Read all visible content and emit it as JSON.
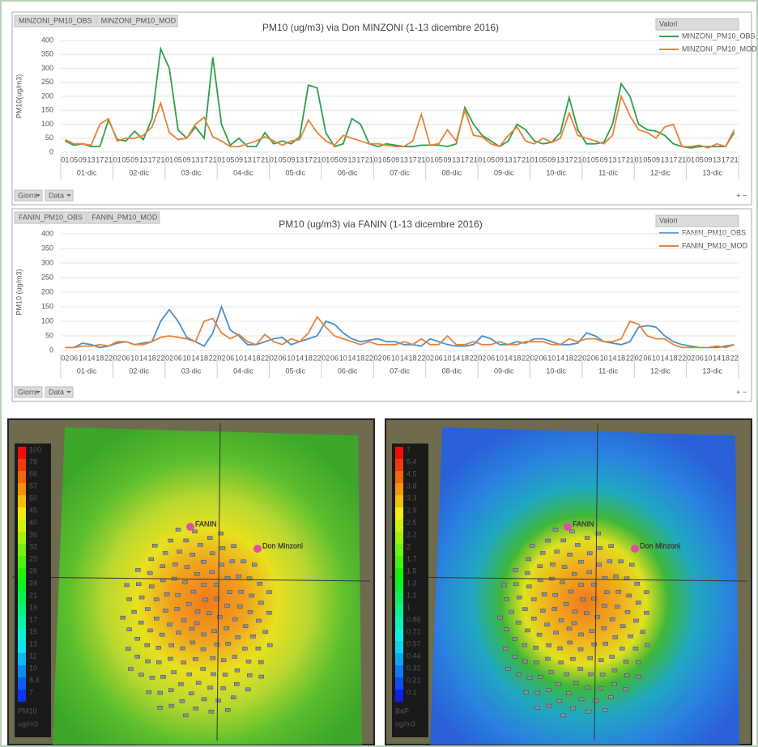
{
  "chart_data": [
    {
      "type": "line",
      "title": "PM10 (ug/m3) via Don MINZONI (1-13 dicembre 2016)",
      "y_label": "PM10(ug/m3)",
      "legend_title": "Valori",
      "filter_buttons": [
        "Giorni",
        "Data"
      ],
      "categories": [
        "01",
        "05",
        "09",
        "13",
        "17",
        "21",
        "01",
        "05",
        "09",
        "13",
        "17",
        "21",
        "01",
        "05",
        "09",
        "13",
        "17",
        "21",
        "01",
        "05",
        "09",
        "13",
        "17",
        "21",
        "01",
        "05",
        "09",
        "13",
        "17",
        "21",
        "01",
        "05",
        "09",
        "13",
        "17",
        "21",
        "01",
        "05",
        "09",
        "13",
        "17",
        "21",
        "01",
        "05",
        "09",
        "13",
        "17",
        "21",
        "01",
        "05",
        "09",
        "13",
        "17",
        "21",
        "01",
        "05",
        "09",
        "13",
        "17",
        "21",
        "01",
        "05",
        "09",
        "13",
        "17",
        "21",
        "01",
        "05",
        "09",
        "13",
        "17",
        "21",
        "01",
        "05",
        "09",
        "13",
        "17",
        "21"
      ],
      "day_groups": [
        "01-dic",
        "02-dic",
        "03-dic",
        "04-dic",
        "05-dic",
        "06-dic",
        "07-dic",
        "08-dic",
        "09-dic",
        "10-dic",
        "11-dic",
        "12-dic",
        "13-dic"
      ],
      "series": [
        {
          "name": "MINZONI_PM10_OBS",
          "color": "#2e9e4a",
          "values": [
            40,
            25,
            30,
            20,
            20,
            115,
            45,
            40,
            75,
            45,
            120,
            370,
            300,
            80,
            50,
            90,
            50,
            340,
            100,
            25,
            50,
            20,
            20,
            70,
            30,
            40,
            30,
            55,
            240,
            230,
            70,
            20,
            30,
            120,
            100,
            30,
            20,
            30,
            25,
            20,
            20,
            25,
            25,
            25,
            20,
            30,
            160,
            100,
            60,
            40,
            20,
            40,
            100,
            80,
            40,
            30,
            35,
            70,
            195,
            80,
            30,
            30,
            35,
            100,
            245,
            200,
            100,
            80,
            75,
            60,
            30,
            20,
            15,
            20,
            20,
            20,
            20,
            70
          ]
        },
        {
          "name": "MINZONI_PM10_MOD",
          "color": "#e8823a",
          "values": [
            45,
            30,
            30,
            25,
            100,
            120,
            40,
            50,
            50,
            60,
            90,
            175,
            70,
            45,
            50,
            100,
            125,
            55,
            40,
            20,
            20,
            30,
            40,
            55,
            40,
            25,
            40,
            45,
            115,
            70,
            40,
            25,
            60,
            50,
            40,
            30,
            30,
            25,
            20,
            20,
            40,
            135,
            25,
            30,
            80,
            40,
            150,
            60,
            55,
            30,
            20,
            60,
            90,
            40,
            30,
            50,
            35,
            50,
            140,
            60,
            50,
            40,
            30,
            60,
            200,
            130,
            80,
            70,
            50,
            90,
            100,
            20,
            20,
            25,
            15,
            30,
            20,
            80
          ]
        }
      ],
      "ylim": [
        0,
        400
      ],
      "yticks": [
        0,
        50,
        100,
        150,
        200,
        250,
        300,
        350,
        400
      ],
      "grid": true
    },
    {
      "type": "line",
      "title": "PM10 (ug/m3) via FANIN (1-13 dicembre 2016)",
      "y_label": "PM10 (ug/m3)",
      "legend_title": "Valori",
      "filter_buttons": [
        "Giorni",
        "Data"
      ],
      "categories": [
        "02",
        "06",
        "10",
        "14",
        "18",
        "22",
        "02",
        "06",
        "10",
        "14",
        "18",
        "22",
        "02",
        "06",
        "10",
        "14",
        "18",
        "22",
        "02",
        "06",
        "10",
        "14",
        "18",
        "22",
        "02",
        "06",
        "10",
        "14",
        "18",
        "22",
        "02",
        "06",
        "10",
        "14",
        "18",
        "22",
        "02",
        "06",
        "10",
        "14",
        "18",
        "22",
        "02",
        "06",
        "10",
        "14",
        "18",
        "22",
        "02",
        "06",
        "10",
        "14",
        "18",
        "22",
        "02",
        "06",
        "10",
        "14",
        "18",
        "22",
        "02",
        "06",
        "10",
        "14",
        "18",
        "22",
        "02",
        "06",
        "10",
        "14",
        "18",
        "22",
        "02",
        "06",
        "10",
        "14",
        "18",
        "22"
      ],
      "day_groups": [
        "01-dic",
        "02-dic",
        "03-dic",
        "04-dic",
        "05-dic",
        "06-dic",
        "07-dic",
        "08-dic",
        "09-dic",
        "10-dic",
        "11-dic",
        "12-dic",
        "13-dic"
      ],
      "series": [
        {
          "name": "FANIN_PM10_OBS",
          "color": "#4a90c8",
          "values": [
            10,
            10,
            25,
            20,
            10,
            15,
            25,
            30,
            20,
            25,
            30,
            100,
            140,
            100,
            45,
            30,
            15,
            60,
            150,
            70,
            50,
            20,
            20,
            30,
            40,
            45,
            20,
            30,
            40,
            50,
            100,
            90,
            60,
            40,
            30,
            35,
            40,
            30,
            30,
            20,
            20,
            15,
            40,
            30,
            20,
            15,
            15,
            20,
            50,
            40,
            20,
            20,
            30,
            25,
            40,
            40,
            30,
            20,
            20,
            25,
            60,
            50,
            30,
            25,
            20,
            30,
            80,
            85,
            80,
            50,
            30,
            20,
            15,
            10,
            10,
            10,
            15,
            20
          ]
        },
        {
          "name": "FANIN_PM10_MOD",
          "color": "#e8823a",
          "values": [
            10,
            10,
            15,
            15,
            20,
            15,
            30,
            30,
            20,
            20,
            30,
            45,
            50,
            45,
            40,
            30,
            100,
            110,
            60,
            40,
            55,
            30,
            20,
            55,
            30,
            20,
            40,
            30,
            60,
            115,
            80,
            50,
            40,
            30,
            20,
            30,
            20,
            20,
            20,
            30,
            20,
            40,
            20,
            20,
            50,
            20,
            20,
            30,
            20,
            20,
            30,
            20,
            20,
            30,
            30,
            30,
            20,
            20,
            40,
            30,
            40,
            40,
            30,
            30,
            40,
            100,
            90,
            50,
            40,
            40,
            20,
            10,
            10,
            10,
            10,
            15,
            10,
            20
          ]
        }
      ],
      "ylim": [
        0,
        400
      ],
      "yticks": [
        0,
        50,
        100,
        150,
        200,
        250,
        300,
        350,
        400
      ],
      "grid": true
    }
  ],
  "maps": [
    {
      "colorbar": {
        "labels": [
          "100",
          "78",
          "66",
          "57",
          "50",
          "45",
          "40",
          "36",
          "32",
          "29",
          "26",
          "24",
          "21",
          "19",
          "17",
          "15",
          "13",
          "11",
          "10",
          "8.4",
          "7"
        ],
        "name": "PM10",
        "unit": "ug/m3"
      },
      "places": [
        "FANIN",
        "Don Minzoni"
      ]
    },
    {
      "colorbar": {
        "labels": [
          "7",
          "5.4",
          "4.5",
          "3.8",
          "3.3",
          "2.9",
          "2.5",
          "2.2",
          "2",
          "1.7",
          "1.5",
          "1.3",
          "1.1",
          "1",
          "0.86",
          "0.71",
          "0.57",
          "0.44",
          "0.32",
          "0.21",
          "0.1"
        ],
        "name": "BaP",
        "unit": "ng/m3"
      },
      "places": [
        "FANIN",
        "Don Minzoni"
      ]
    }
  ]
}
